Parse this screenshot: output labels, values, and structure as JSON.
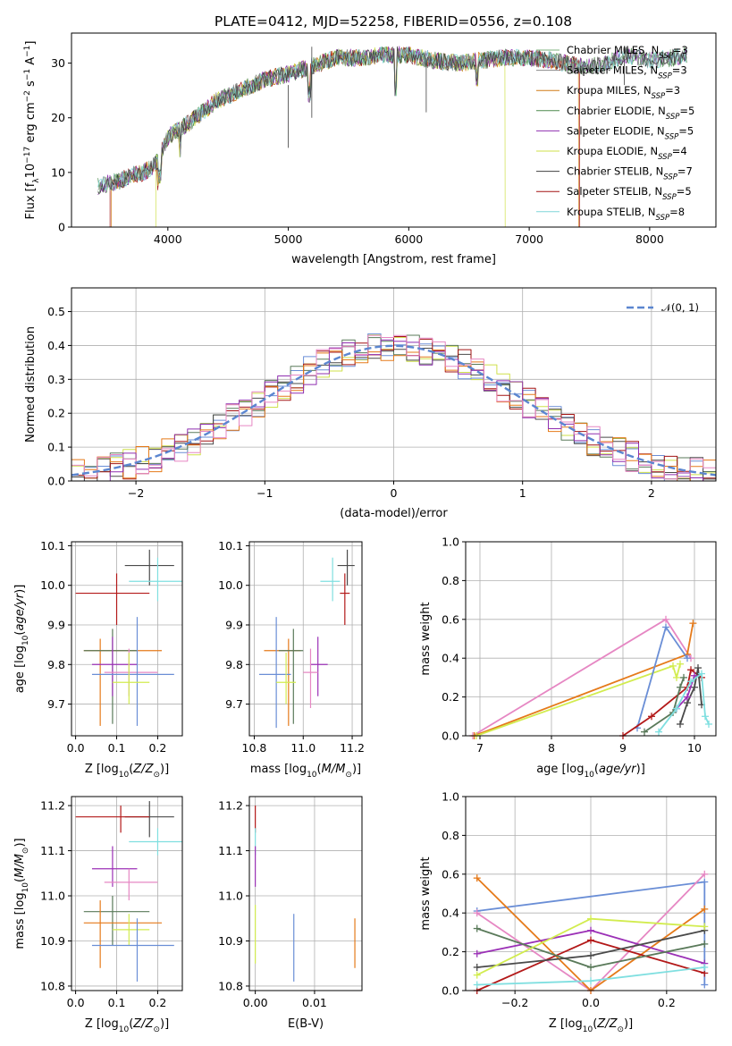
{
  "colors": {
    "chabrier_miles": "#7fb37f",
    "salpeter_miles": "#8a8a8a",
    "kroupa_miles": "#d07a17",
    "chabrier_elodie": "#4e8a4e",
    "salpeter_elodie": "#8f2fb0",
    "kroupa_elodie": "#cfe04a",
    "chabrier_stelib": "#404040",
    "salpeter_stelib": "#a31414",
    "kroupa_stelib": "#7fd6d9",
    "pink": "#e687c3",
    "blue": "#6a8ed6",
    "orange": "#e57a1a",
    "purple": "#9b30b6",
    "yellow": "#d2ec4f",
    "dark": "#4a4a4a",
    "darkgreen": "#5a7a5a",
    "red": "#b31919",
    "cyan": "#7fdfe0",
    "grid": "#b0b0b0"
  },
  "chart_data": [
    {
      "type": "line",
      "title": "PLATE=0412, MJD=52258, FIBERID=0556, z=0.108",
      "xlabel": "wavelength [Angstrom, rest frame]",
      "ylabel": "Flux [f_λ10^-17 erg cm^-2 s^-1 A^-1]",
      "xlim": [
        3200,
        8550
      ],
      "ylim": [
        0,
        35.5
      ],
      "xticks": [
        "4000",
        "5000",
        "6000",
        "7000",
        "8000"
      ],
      "yticks": [
        "0",
        "10",
        "20",
        "30"
      ],
      "grid": false,
      "legend": "top-right",
      "legend_entries": [
        "Chabrier MILES, N_SSP=3",
        "Salpeter MILES, N_SSP=3",
        "Kroupa MILES, N_SSP=3",
        "Chabrier ELODIE, N_SSP=5",
        "Salpeter ELODIE, N_SSP=5",
        "Kroupa ELODIE, N_SSP=4",
        "Chabrier STELIB, N_SSP=7",
        "Salpeter STELIB, N_SSP=5",
        "Kroupa STELIB, N_SSP=8"
      ],
      "continuum": {
        "x": [
          3420,
          3600,
          3700,
          3800,
          3900,
          4000,
          4200,
          4400,
          4600,
          4800,
          5000,
          5200,
          5400,
          5600,
          5800,
          6000,
          6200,
          6400,
          6600,
          6800,
          7000,
          7200,
          7400,
          7600,
          7800,
          8000,
          8200,
          8300
        ],
        "y": [
          7.5,
          8.5,
          9.5,
          10,
          11.5,
          16.5,
          19.5,
          23,
          25,
          27,
          28,
          29.5,
          31,
          31,
          31.5,
          31.5,
          30.5,
          30,
          30.5,
          31,
          31,
          30.5,
          29.5,
          29.5,
          31.5,
          30.5,
          31,
          31.5
        ]
      },
      "model_ranges": {
        "Salpeter STELIB, N_SSP=5": [
          3520,
          7420
        ],
        "Kroupa MILES, N_SSP=3": [
          3530,
          7410
        ],
        "Kroupa ELODIE, N_SSP=4": [
          3900,
          6800
        ]
      }
    },
    {
      "type": "line",
      "title": "",
      "xlabel": "(data-model)/error",
      "ylabel": "Normed distribution",
      "xlim": [
        -2.5,
        2.5
      ],
      "ylim": [
        0,
        0.57
      ],
      "xticks": [
        "−2",
        "−1",
        "0",
        "1",
        "2"
      ],
      "yticks": [
        "0.0",
        "0.1",
        "0.2",
        "0.3",
        "0.4",
        "0.5"
      ],
      "grid": true,
      "legend": "top-right",
      "legend_entries": [
        "𝒩(0, 1)"
      ],
      "bin_width": 0.1
    },
    {
      "type": "scatter",
      "title": "",
      "xlabel": "Z [log10(Z/Z⊙)]",
      "ylabel": "age [log10(age/yr)]",
      "xlim": [
        -0.01,
        0.26
      ],
      "ylim": [
        9.62,
        10.11
      ],
      "xticks": [
        "0.0",
        "0.1",
        "0.2"
      ],
      "yticks": [
        "9.7",
        "9.8",
        "9.9",
        "10.0",
        "10.1"
      ],
      "grid": true,
      "points": [
        {
          "c": "dark",
          "x": 0.18,
          "y": 10.05,
          "xl": 0.12,
          "xh": 0.24,
          "yl": 10.0,
          "yh": 10.09
        },
        {
          "c": "cyan",
          "x": 0.2,
          "y": 10.01,
          "xl": 0.13,
          "xh": 0.26,
          "yl": 9.96,
          "yh": 10.07
        },
        {
          "c": "red",
          "x": 0.1,
          "y": 9.98,
          "xl": 0.0,
          "xh": 0.18,
          "yl": 9.9,
          "yh": 10.03
        },
        {
          "c": "orange",
          "x": 0.06,
          "y": 9.835,
          "xl": 0.02,
          "xh": 0.21,
          "yl": 9.645,
          "yh": 9.865
        },
        {
          "c": "darkgreen",
          "x": 0.09,
          "y": 9.835,
          "xl": 0.02,
          "xh": 0.15,
          "yl": 9.65,
          "yh": 9.89
        },
        {
          "c": "purple",
          "x": 0.09,
          "y": 9.8,
          "xl": 0.04,
          "xh": 0.15,
          "yl": 9.72,
          "yh": 9.87
        },
        {
          "c": "pink",
          "x": 0.13,
          "y": 9.78,
          "xl": 0.07,
          "xh": 0.2,
          "yl": 9.72,
          "yh": 9.84
        },
        {
          "c": "blue",
          "x": 0.15,
          "y": 9.775,
          "xl": 0.04,
          "xh": 0.24,
          "yl": 9.645,
          "yh": 9.92
        },
        {
          "c": "yellow",
          "x": 0.13,
          "y": 9.755,
          "xl": 0.09,
          "xh": 0.18,
          "yl": 9.7,
          "yh": 9.83
        }
      ]
    },
    {
      "type": "scatter",
      "title": "",
      "xlabel": "mass [log10(M/M⊙)]",
      "ylabel": "",
      "xlim": [
        10.78,
        11.24
      ],
      "ylim": [
        9.62,
        10.11
      ],
      "xticks": [
        "10.8",
        "11.0",
        "11.2"
      ],
      "yticks": [
        "9.7",
        "9.8",
        "9.9",
        "10.0",
        "10.1"
      ],
      "grid": true,
      "points": [
        {
          "c": "dark",
          "x": 11.18,
          "y": 10.05,
          "xl": 11.14,
          "xh": 11.21,
          "yl": 10.0,
          "yh": 10.09
        },
        {
          "c": "cyan",
          "x": 11.12,
          "y": 10.01,
          "xl": 11.07,
          "xh": 11.15,
          "yl": 9.96,
          "yh": 10.07
        },
        {
          "c": "red",
          "x": 11.17,
          "y": 9.98,
          "xl": 11.15,
          "xh": 11.19,
          "yl": 9.9,
          "yh": 10.03
        },
        {
          "c": "orange",
          "x": 10.94,
          "y": 9.835,
          "xl": 10.84,
          "xh": 10.99,
          "yl": 9.645,
          "yh": 9.865
        },
        {
          "c": "darkgreen",
          "x": 10.96,
          "y": 9.835,
          "xl": 10.9,
          "xh": 11.0,
          "yl": 9.65,
          "yh": 9.89
        },
        {
          "c": "purple",
          "x": 11.06,
          "y": 9.8,
          "xl": 11.03,
          "xh": 11.1,
          "yl": 9.72,
          "yh": 9.87
        },
        {
          "c": "pink",
          "x": 11.03,
          "y": 9.78,
          "xl": 11.0,
          "xh": 11.06,
          "yl": 9.69,
          "yh": 9.84
        },
        {
          "c": "blue",
          "x": 10.89,
          "y": 9.775,
          "xl": 10.82,
          "xh": 10.95,
          "yl": 9.64,
          "yh": 9.92
        },
        {
          "c": "yellow",
          "x": 10.93,
          "y": 9.755,
          "xl": 10.89,
          "xh": 10.97,
          "yl": 9.7,
          "yh": 9.83
        }
      ]
    },
    {
      "type": "line",
      "title": "",
      "xlabel": "age [log10(age/yr)]",
      "ylabel": "mass weight",
      "xlim": [
        6.8,
        10.3
      ],
      "ylim": [
        0,
        1
      ],
      "xticks": [
        "7",
        "8",
        "9",
        "10"
      ],
      "yticks": [
        "0.0",
        "0.2",
        "0.4",
        "0.6",
        "0.8",
        "1.0"
      ],
      "grid": true,
      "series": [
        {
          "c": "pink",
          "x": [
            6.9,
            9.6,
            9.95
          ],
          "y": [
            0.0,
            0.6,
            0.4
          ]
        },
        {
          "c": "orange",
          "x": [
            6.92,
            9.9,
            9.98
          ],
          "y": [
            0.0,
            0.42,
            0.58
          ]
        },
        {
          "c": "yellow",
          "x": [
            6.95,
            9.7,
            9.75,
            9.8
          ],
          "y": [
            0.0,
            0.36,
            0.3,
            0.37
          ]
        },
        {
          "c": "blue",
          "x": [
            9.2,
            9.6,
            9.9
          ],
          "y": [
            0.04,
            0.56,
            0.4
          ]
        },
        {
          "c": "red",
          "x": [
            9.0,
            9.4,
            9.9,
            9.95,
            10.1
          ],
          "y": [
            0.0,
            0.1,
            0.25,
            0.34,
            0.3
          ]
        },
        {
          "c": "darkgreen",
          "x": [
            9.3,
            9.7,
            9.8,
            9.85
          ],
          "y": [
            0.02,
            0.12,
            0.25,
            0.3
          ]
        },
        {
          "c": "dark",
          "x": [
            9.8,
            9.9,
            10.0,
            10.05,
            10.1
          ],
          "y": [
            0.06,
            0.17,
            0.25,
            0.35,
            0.16
          ]
        },
        {
          "c": "purple",
          "x": [
            9.75,
            9.9,
            10.0
          ],
          "y": [
            0.14,
            0.2,
            0.31
          ]
        },
        {
          "c": "cyan",
          "x": [
            9.5,
            9.75,
            9.95,
            10.1,
            10.15,
            10.2
          ],
          "y": [
            0.02,
            0.14,
            0.28,
            0.32,
            0.1,
            0.06
          ]
        }
      ]
    },
    {
      "type": "scatter",
      "title": "",
      "xlabel": "Z [log10(Z/Z⊙)]",
      "ylabel": "mass [log10(M/M⊙)]",
      "xlim": [
        -0.01,
        0.26
      ],
      "ylim": [
        10.79,
        11.22
      ],
      "xticks": [
        "0.0",
        "0.1",
        "0.2"
      ],
      "yticks": [
        "10.8",
        "10.9",
        "11.0",
        "11.1",
        "11.2"
      ],
      "grid": true,
      "points": [
        {
          "c": "dark",
          "x": 0.18,
          "y": 11.175,
          "xl": 0.12,
          "xh": 0.24,
          "yl": 11.13,
          "yh": 11.21
        },
        {
          "c": "cyan",
          "x": 0.2,
          "y": 11.12,
          "xl": 0.13,
          "xh": 0.26,
          "yl": 11.09,
          "yh": 11.15
        },
        {
          "c": "red",
          "x": 0.11,
          "y": 11.175,
          "xl": 0.0,
          "xh": 0.18,
          "yl": 11.14,
          "yh": 11.2
        },
        {
          "c": "purple",
          "x": 0.09,
          "y": 11.06,
          "xl": 0.04,
          "xh": 0.15,
          "yl": 11.02,
          "yh": 11.11
        },
        {
          "c": "pink",
          "x": 0.13,
          "y": 11.03,
          "xl": 0.07,
          "xh": 0.2,
          "yl": 10.99,
          "yh": 11.06
        },
        {
          "c": "darkgreen",
          "x": 0.09,
          "y": 10.965,
          "xl": 0.02,
          "xh": 0.18,
          "yl": 10.89,
          "yh": 11.0
        },
        {
          "c": "orange",
          "x": 0.06,
          "y": 10.94,
          "xl": 0.02,
          "xh": 0.21,
          "yl": 10.84,
          "yh": 10.99
        },
        {
          "c": "yellow",
          "x": 0.13,
          "y": 10.925,
          "xl": 0.09,
          "xh": 0.18,
          "yl": 10.89,
          "yh": 10.96
        },
        {
          "c": "blue",
          "x": 0.15,
          "y": 10.89,
          "xl": 0.04,
          "xh": 0.24,
          "yl": 10.81,
          "yh": 10.95
        }
      ]
    },
    {
      "type": "scatter",
      "title": "",
      "xlabel": "E(B-V)",
      "ylabel": "",
      "xlim": [
        -0.001,
        0.018
      ],
      "ylim": [
        10.79,
        11.22
      ],
      "xticks": [
        "0.00",
        "0.01"
      ],
      "yticks": [
        "10.8",
        "10.9",
        "11.0",
        "11.1",
        "11.2"
      ],
      "grid": true,
      "points": [
        {
          "c": "red",
          "x": 0.0,
          "y": 11.175,
          "yl": 11.14,
          "yh": 11.2
        },
        {
          "c": "cyan",
          "x": 0.0,
          "y": 11.12,
          "yl": 11.09,
          "yh": 11.15
        },
        {
          "c": "purple",
          "x": 0.0,
          "y": 11.06,
          "yl": 11.02,
          "yh": 11.11
        },
        {
          "c": "yellow",
          "x": 0.0,
          "y": 10.925,
          "yl": 10.85,
          "yh": 10.98
        },
        {
          "c": "blue",
          "x": 0.0065,
          "y": 10.89,
          "yl": 10.81,
          "yh": 10.96
        },
        {
          "c": "orange",
          "x": 0.0168,
          "y": 10.89,
          "yl": 10.84,
          "yh": 10.95
        }
      ]
    },
    {
      "type": "line",
      "title": "",
      "xlabel": "Z [log10(Z/Z⊙)]",
      "ylabel": "mass weight",
      "xlim": [
        -0.33,
        0.33
      ],
      "ylim": [
        0,
        1
      ],
      "xticks": [
        "−0.2",
        "0.0",
        "0.2"
      ],
      "yticks": [
        "0.0",
        "0.2",
        "0.4",
        "0.6",
        "0.8",
        "1.0"
      ],
      "grid": true,
      "series": [
        {
          "c": "blue",
          "x": [
            -0.3,
            0.3,
            0.3
          ],
          "y": [
            0.41,
            0.56,
            0.03
          ]
        },
        {
          "c": "pink",
          "x": [
            -0.3,
            0.0,
            0.3
          ],
          "y": [
            0.4,
            0.0,
            0.6
          ]
        },
        {
          "c": "orange",
          "x": [
            -0.3,
            0.0,
            0.3
          ],
          "y": [
            0.58,
            0.0,
            0.42
          ]
        },
        {
          "c": "purple",
          "x": [
            -0.3,
            0.0,
            0.3
          ],
          "y": [
            0.19,
            0.31,
            0.14
          ]
        },
        {
          "c": "red",
          "x": [
            -0.3,
            0.0,
            0.3
          ],
          "y": [
            0.0,
            0.26,
            0.09
          ]
        },
        {
          "c": "darkgreen",
          "x": [
            -0.3,
            0.0,
            0.3
          ],
          "y": [
            0.32,
            0.12,
            0.24
          ]
        },
        {
          "c": "dark",
          "x": [
            -0.3,
            0.0,
            0.3
          ],
          "y": [
            0.12,
            0.18,
            0.31
          ]
        },
        {
          "c": "yellow",
          "x": [
            -0.3,
            0.0,
            0.3
          ],
          "y": [
            0.08,
            0.37,
            0.33
          ]
        },
        {
          "c": "cyan",
          "x": [
            -0.3,
            0.0,
            0.3
          ],
          "y": [
            0.03,
            0.05,
            0.12
          ]
        }
      ]
    }
  ]
}
